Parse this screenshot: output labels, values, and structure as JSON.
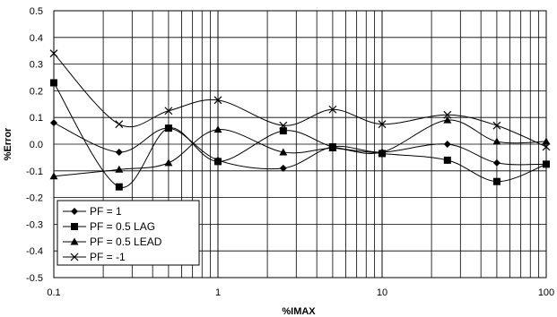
{
  "chart_data": {
    "type": "line",
    "xscale": "log",
    "xlim": [
      0.1,
      100
    ],
    "ylim": [
      -0.5,
      0.5
    ],
    "xlabel": "%IMAX",
    "ylabel": "%Error",
    "grid": true,
    "legend_position": "bottom-left",
    "x_ticks": [
      "0.1",
      "1",
      "10",
      "100"
    ],
    "y_ticks": [
      "0.5",
      "0.4",
      "0.3",
      "0.2",
      "0.1",
      "0.0",
      "-0.1",
      "-0.2",
      "-0.3",
      "-0.4",
      "-0.5"
    ],
    "y_tick_values": [
      0.5,
      0.4,
      0.3,
      0.2,
      0.1,
      0.0,
      -0.1,
      -0.2,
      -0.3,
      -0.4,
      -0.5
    ],
    "x": [
      0.1,
      0.25,
      0.5,
      1,
      2.5,
      5,
      10,
      25,
      50,
      100
    ],
    "series": [
      {
        "name": "PF = 1",
        "marker": "diamond",
        "values": [
          0.08,
          -0.03,
          0.06,
          -0.06,
          -0.09,
          -0.01,
          -0.03,
          0.0,
          -0.07,
          -0.075
        ]
      },
      {
        "name": "PF = 0.5 LAG",
        "marker": "square",
        "values": [
          0.23,
          -0.16,
          0.06,
          -0.065,
          0.05,
          -0.01,
          -0.035,
          -0.06,
          -0.14,
          -0.075
        ]
      },
      {
        "name": "PF = 0.5 LEAD",
        "marker": "triangle",
        "values": [
          -0.12,
          -0.095,
          -0.07,
          0.055,
          -0.03,
          -0.015,
          -0.03,
          0.09,
          0.01,
          0.01
        ]
      },
      {
        "name": "PF = -1",
        "marker": "x",
        "values": [
          0.34,
          0.075,
          0.125,
          0.165,
          0.07,
          0.13,
          0.075,
          0.11,
          0.07,
          -0.01
        ]
      }
    ]
  }
}
